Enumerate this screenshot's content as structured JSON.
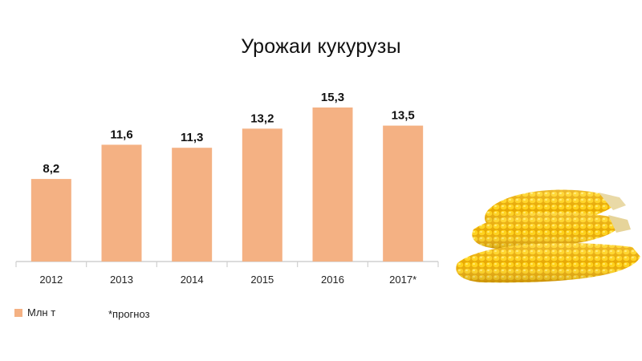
{
  "chart_data": {
    "type": "bar",
    "title": "Урожаи кукурузы",
    "categories": [
      "2012",
      "2013",
      "2014",
      "2015",
      "2016",
      "2017*"
    ],
    "series": [
      {
        "name": "Млн т",
        "values": [
          8.2,
          11.6,
          11.3,
          13.2,
          15.3,
          13.5
        ]
      }
    ],
    "data_labels": [
      "8,2",
      "11,6",
      "11,3",
      "13,2",
      "15,3",
      "13,5"
    ],
    "xlabel": "",
    "ylabel": "",
    "ylim": [
      0,
      15.3
    ],
    "grid": false,
    "legend": "bottom-left",
    "bar_color": "#f4b183",
    "axis_color": "#d0d0d0"
  },
  "footnote": "*прогноз",
  "image": {
    "subject": "corn-cobs-photo"
  }
}
